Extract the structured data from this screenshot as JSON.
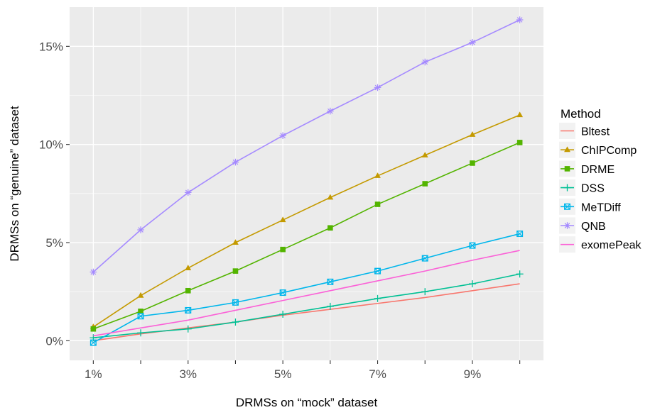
{
  "chart_data": {
    "type": "line",
    "xlabel": "DRMSs on “mock” dataset",
    "ylabel": "DRMSs on “genuine” dataset",
    "x": [
      1,
      2,
      3,
      4,
      5,
      6,
      7,
      8,
      9,
      10
    ],
    "xlim": [
      0.5,
      10.5
    ],
    "ylim": [
      -1.0,
      17.0
    ],
    "x_ticks": [
      1,
      3,
      5,
      7,
      9
    ],
    "x_minor_ticks": [
      2,
      4,
      6,
      8,
      10
    ],
    "x_tick_labels": [
      "1%",
      "3%",
      "5%",
      "7%",
      "9%"
    ],
    "y_ticks": [
      0,
      5,
      10,
      15
    ],
    "y_tick_labels": [
      "0%",
      "5%",
      "10%",
      "15%"
    ],
    "grid": true,
    "legend": {
      "title": "Method",
      "position": "right"
    },
    "series": [
      {
        "name": "Bltest",
        "color": "#F8766D",
        "marker": "none",
        "values": [
          0.0,
          0.35,
          0.65,
          0.95,
          1.3,
          1.6,
          1.9,
          2.2,
          2.55,
          2.9
        ]
      },
      {
        "name": "ChIPComp",
        "color": "#C49A00",
        "marker": "triangle",
        "values": [
          0.7,
          2.3,
          3.7,
          5.0,
          6.15,
          7.3,
          8.4,
          9.45,
          10.5,
          11.5
        ]
      },
      {
        "name": "DRME",
        "color": "#53B400",
        "marker": "square",
        "values": [
          0.6,
          1.5,
          2.55,
          3.55,
          4.65,
          5.75,
          6.95,
          8.0,
          9.05,
          10.1
        ]
      },
      {
        "name": "DSS",
        "color": "#00C094",
        "marker": "plus",
        "values": [
          0.15,
          0.4,
          0.6,
          0.95,
          1.35,
          1.75,
          2.15,
          2.5,
          2.9,
          3.4
        ]
      },
      {
        "name": "MeTDiff",
        "color": "#00B6EB",
        "marker": "boxsquare",
        "values": [
          -0.1,
          1.25,
          1.55,
          1.95,
          2.45,
          3.0,
          3.55,
          4.2,
          4.85,
          5.45
        ]
      },
      {
        "name": "QNB",
        "color": "#A58AFF",
        "marker": "asterisk",
        "values": [
          3.5,
          5.65,
          7.55,
          9.1,
          10.45,
          11.7,
          12.9,
          14.2,
          15.2,
          16.35
        ]
      },
      {
        "name": "exomePeak",
        "color": "#FB61D7",
        "marker": "none",
        "values": [
          0.25,
          0.65,
          1.05,
          1.55,
          2.05,
          2.55,
          3.05,
          3.55,
          4.1,
          4.6
        ]
      }
    ]
  }
}
